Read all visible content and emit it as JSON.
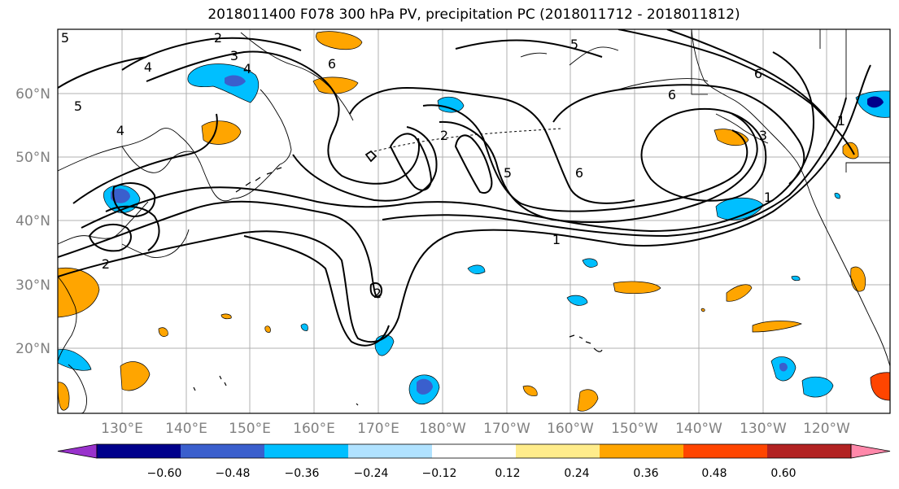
{
  "title": "2018011400 F078 300 hPa PV, precipitation PC (2018011712 - 2018011812)",
  "map": {
    "lat_labels": [
      "60°N",
      "50°N",
      "40°N",
      "30°N",
      "20°N"
    ],
    "lon_labels": [
      "130°E",
      "140°E",
      "150°E",
      "160°E",
      "170°E",
      "180°W",
      "170°W",
      "160°W",
      "150°W",
      "140°W",
      "130°W",
      "120°W"
    ],
    "contour_labels": [
      "2",
      "3",
      "4",
      "6",
      "5",
      "4",
      "5",
      "5",
      "6",
      "1",
      "6",
      "2",
      "5",
      "6",
      "1",
      "1",
      "4",
      "2",
      "2",
      "3"
    ],
    "line_color": "#000000",
    "grid_color": "#b0b0b0",
    "land_color": "#ffffff"
  },
  "colorbar": {
    "ticks": [
      "−0.60",
      "−0.48",
      "−0.36",
      "−0.24",
      "−0.12",
      "0.12",
      "0.24",
      "0.36",
      "0.48",
      "0.60"
    ],
    "colors": [
      "#9932cc",
      "#00008b",
      "#3a5fcd",
      "#00bfff",
      "#b0e2ff",
      "#ffffff",
      "#ffec8b",
      "#ffa500",
      "#ff4500",
      "#b22222",
      "#ff88aa"
    ]
  }
}
